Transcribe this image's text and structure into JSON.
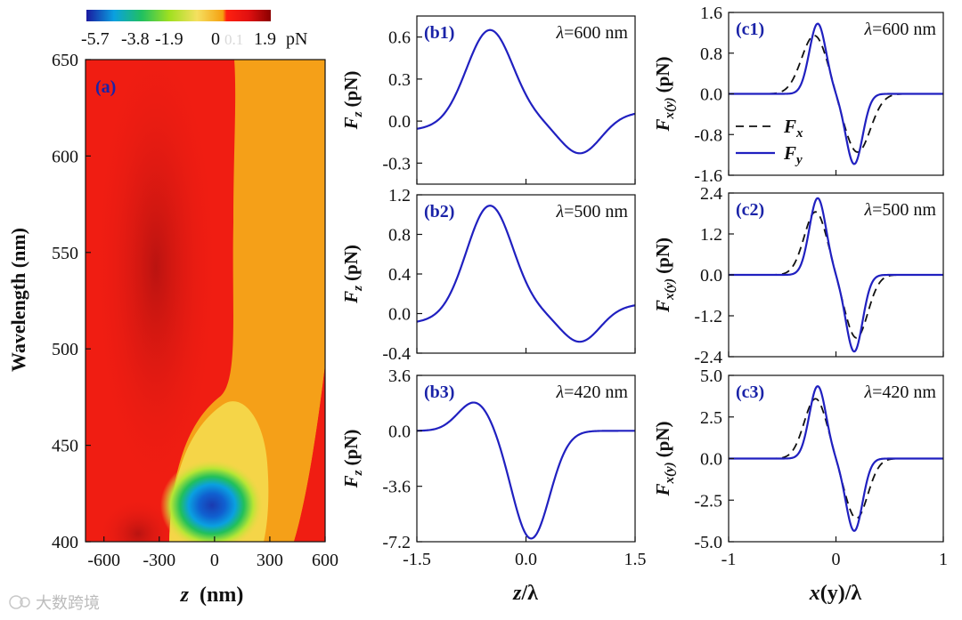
{
  "colorbar": {
    "ticks": [
      "-5.7",
      "-3.8",
      "-1.9",
      "0",
      "1.9"
    ],
    "tick_values": [
      -5.7,
      -3.8,
      -1.9,
      0,
      1.9
    ],
    "unit": "pN",
    "ghost": "0.1",
    "range": [
      -5.7,
      1.9
    ],
    "colors": [
      "#1a1aa0",
      "#0aa0e0",
      "#20c060",
      "#a0e020",
      "#f5e060",
      "#f5a010",
      "#f08020",
      "#ff0000",
      "#8b0000"
    ]
  },
  "watermark": "大数跨境",
  "chart_data": [
    {
      "id": "a",
      "type": "heatmap",
      "panel_label": "(a)",
      "xlabel_main": "z",
      "xlabel_unit": "(nm)",
      "ylabel": "Wavelength (nm)",
      "xlim": [
        -700,
        600
      ],
      "ylim": [
        400,
        650
      ],
      "xticks": [
        -600,
        -300,
        0,
        300,
        600
      ],
      "xtick_labels": [
        "-600",
        "-300",
        "0",
        "300",
        "600"
      ],
      "yticks": [
        400,
        450,
        500,
        550,
        600,
        650
      ],
      "ytick_labels": [
        "400",
        "450",
        "500",
        "550",
        "600",
        "650"
      ],
      "zlim": [
        -5.7,
        1.9
      ],
      "hotspot": {
        "z": 0,
        "wavelength": 416,
        "value": -5.7
      },
      "colors": {
        "red": "#f01d12",
        "dark": "#b01010",
        "orange": "#f5a018",
        "yellow": "#f5d548",
        "lightgreen": "#b8e635",
        "green": "#22c05a",
        "cyan": "#0aa0e0",
        "blue": "#1a3ab0"
      }
    },
    {
      "id": "b1",
      "type": "line",
      "panel_label": "(b1)",
      "lambda_label": "=600 nm",
      "ylabel_main": "F",
      "ylabel_sub": "z",
      "ylabel_unit": "(pN)",
      "xlim": [
        -1.5,
        1.5
      ],
      "ylim": [
        -0.45,
        0.75
      ],
      "yticks": [
        -0.3,
        0.0,
        0.3,
        0.6
      ],
      "ytick_labels": [
        "-0.3",
        "0.0",
        "0.3",
        "0.6"
      ],
      "xticks": [
        -1.5,
        0,
        1.5
      ],
      "series": [
        {
          "name": "Fz",
          "color": "#2020c0",
          "dash": false,
          "func": "gauss2",
          "params": [
            0.67,
            -0.5,
            0.45,
            -0.26,
            0.75,
            0.4,
            0.04
          ]
        }
      ]
    },
    {
      "id": "b2",
      "type": "line",
      "panel_label": "(b2)",
      "lambda_label": "=500 nm",
      "ylabel_main": "F",
      "ylabel_sub": "z",
      "ylabel_unit": "(pN)",
      "xlim": [
        -1.5,
        1.5
      ],
      "ylim": [
        -0.4,
        1.2
      ],
      "yticks": [
        -0.4,
        0.0,
        0.4,
        0.8,
        1.2
      ],
      "ytick_labels": [
        "-0.4",
        "0.0",
        "0.4",
        "0.8",
        "1.2"
      ],
      "xticks": [
        -1.5,
        0,
        1.5
      ],
      "series": [
        {
          "name": "Fz",
          "color": "#2020c0",
          "dash": false,
          "func": "gauss2",
          "params": [
            1.12,
            -0.5,
            0.45,
            -0.33,
            0.75,
            0.38,
            0.06
          ]
        }
      ]
    },
    {
      "id": "b3",
      "type": "line",
      "panel_label": "(b3)",
      "lambda_label": "=420 nm",
      "ylabel_main": "F",
      "ylabel_sub": "z",
      "ylabel_unit": "(pN)",
      "xlim": [
        -1.5,
        1.5
      ],
      "ylim": [
        -7.2,
        3.6
      ],
      "yticks": [
        -7.2,
        -3.6,
        0.0,
        3.6
      ],
      "ytick_labels": [
        "-7.2",
        "-3.6",
        "0.0",
        "3.6"
      ],
      "xticks": [
        -1.5,
        0,
        1.5
      ],
      "xlabel_main": "z",
      "xlabel_rest": "/λ",
      "xtick_labels": [
        "-1.5",
        "0.0",
        "1.5"
      ],
      "series": [
        {
          "name": "Fz",
          "color": "#2020c0",
          "dash": false,
          "func": "gauss2",
          "params": [
            1.9,
            -0.7,
            0.33,
            -7.0,
            0.07,
            0.36,
            0.0
          ]
        }
      ]
    },
    {
      "id": "c1",
      "type": "line",
      "panel_label": "(c1)",
      "lambda_label": "=600 nm",
      "ylabel_main": "F",
      "ylabel_sub": "x(y)",
      "ylabel_unit": "(pN)",
      "xlim": [
        -1,
        1
      ],
      "ylim": [
        -1.6,
        1.6
      ],
      "yticks": [
        -1.6,
        -0.8,
        0.0,
        0.8,
        1.6
      ],
      "ytick_labels": [
        "-1.6",
        "-0.8",
        "0.0",
        "0.8",
        "1.6"
      ],
      "xticks": [
        -1,
        0,
        1
      ],
      "legend": [
        {
          "main": "F",
          "sub": "x",
          "dash": true
        },
        {
          "main": "F",
          "sub": "y",
          "dash": false
        }
      ],
      "series": [
        {
          "name": "Fx",
          "color": "#111111",
          "dash": true,
          "func": "gauss2",
          "params": [
            1.15,
            -0.2,
            0.17,
            -1.15,
            0.2,
            0.17,
            0
          ]
        },
        {
          "name": "Fy",
          "color": "#2020c0",
          "dash": false,
          "func": "gauss2",
          "params": [
            1.38,
            -0.17,
            0.11,
            -1.38,
            0.17,
            0.11,
            0
          ]
        }
      ]
    },
    {
      "id": "c2",
      "type": "line",
      "panel_label": "(c2)",
      "lambda_label": "=500 nm",
      "ylabel_main": "F",
      "ylabel_sub": "x(y)",
      "ylabel_unit": "(pN)",
      "xlim": [
        -1,
        1
      ],
      "ylim": [
        -2.4,
        2.4
      ],
      "yticks": [
        -2.4,
        -1.2,
        0.0,
        1.2,
        2.4
      ],
      "ytick_labels": [
        "-2.4",
        "-1.2",
        "0.0",
        "1.2",
        "2.4"
      ],
      "xticks": [
        -1,
        0,
        1
      ],
      "series": [
        {
          "name": "Fx",
          "color": "#111111",
          "dash": true,
          "func": "gauss2",
          "params": [
            1.85,
            -0.19,
            0.15,
            -1.85,
            0.19,
            0.15,
            0
          ]
        },
        {
          "name": "Fy",
          "color": "#2020c0",
          "dash": false,
          "func": "gauss2",
          "params": [
            2.25,
            -0.17,
            0.11,
            -2.25,
            0.17,
            0.11,
            0
          ]
        }
      ]
    },
    {
      "id": "c3",
      "type": "line",
      "panel_label": "(c3)",
      "lambda_label": "=420 nm",
      "ylabel_main": "F",
      "ylabel_sub": "x(y)",
      "ylabel_unit": "(pN)",
      "xlim": [
        -1,
        1
      ],
      "ylim": [
        -5.0,
        5.0
      ],
      "yticks": [
        -5.0,
        -2.5,
        0.0,
        2.5,
        5.0
      ],
      "ytick_labels": [
        "-5.0",
        "-2.5",
        "0.0",
        "2.5",
        "5.0"
      ],
      "xticks": [
        -1,
        0,
        1
      ],
      "xlabel_main": "x",
      "xlabel_rest": "(y)/λ",
      "xtick_labels": [
        "-1",
        "0",
        "1"
      ],
      "series": [
        {
          "name": "Fx",
          "color": "#111111",
          "dash": true,
          "func": "gauss2",
          "params": [
            3.6,
            -0.19,
            0.15,
            -3.6,
            0.19,
            0.15,
            0
          ]
        },
        {
          "name": "Fy",
          "color": "#2020c0",
          "dash": false,
          "func": "gauss2",
          "params": [
            4.35,
            -0.17,
            0.11,
            -4.35,
            0.17,
            0.11,
            0
          ]
        }
      ]
    }
  ]
}
